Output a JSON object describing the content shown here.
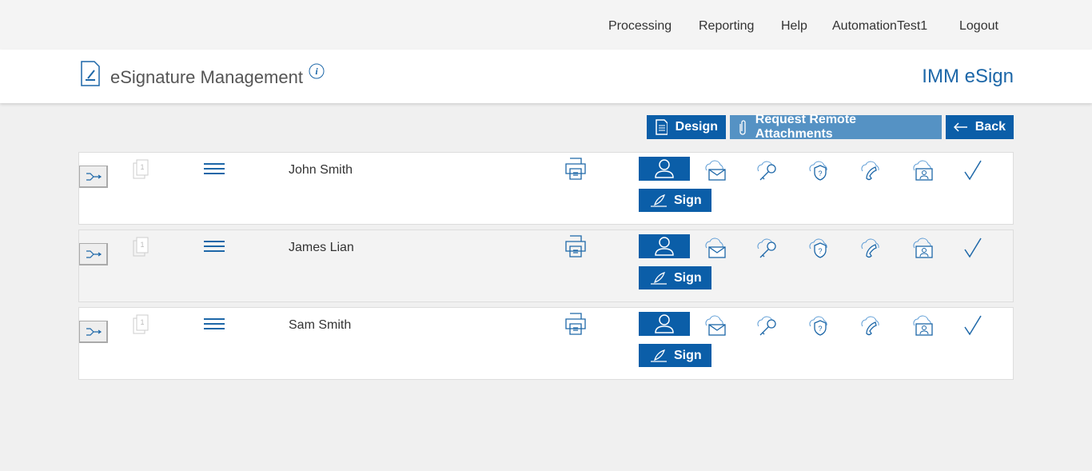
{
  "nav": {
    "items": [
      "Processing",
      "Reporting",
      "Help",
      "AutomationTest1",
      "Logout"
    ]
  },
  "header": {
    "title": "eSignature Management",
    "brand": "IMM eSign"
  },
  "toolbar": {
    "design": "Design",
    "request": "Request Remote Attachments",
    "back": "Back"
  },
  "rows": [
    {
      "name": "John Smith",
      "sign": "Sign",
      "doc_count": "1"
    },
    {
      "name": "James Lian",
      "sign": "Sign",
      "doc_count": "1"
    },
    {
      "name": "Sam Smith",
      "sign": "Sign",
      "doc_count": "1"
    }
  ],
  "colors": {
    "primary": "#0b5ea8",
    "light_button": "#5592c4"
  }
}
